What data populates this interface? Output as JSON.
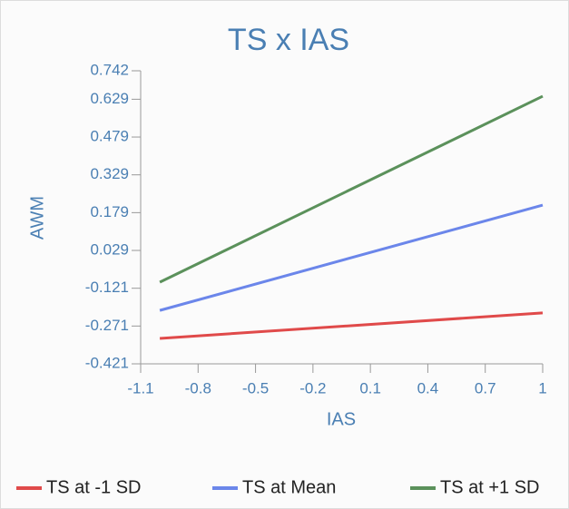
{
  "chart_data": {
    "type": "line",
    "title": "TS x IAS",
    "x_label": "IAS",
    "y_label": "AWM",
    "x": [
      -1,
      1
    ],
    "series": [
      {
        "name": "TS at -1 SD",
        "color": "#e04a4a",
        "values": [
          -0.32,
          -0.219
        ]
      },
      {
        "name": "TS at Mean",
        "color": "#6b86ea",
        "values": [
          -0.209,
          0.209
        ]
      },
      {
        "name": "TS at +1 SD",
        "color": "#5b915b",
        "values": [
          -0.097,
          0.641
        ]
      }
    ],
    "xlim": [
      -1.1,
      1
    ],
    "xticks": [
      -1.1,
      -0.8,
      -0.5,
      -0.2,
      0.1,
      0.4,
      0.7,
      1
    ],
    "ylim": [
      -0.421,
      0.742
    ],
    "yticks": [
      -0.421,
      -0.271,
      -0.121,
      0.029,
      0.179,
      0.329,
      0.479,
      0.629,
      0.742
    ],
    "legend": "bottom"
  }
}
